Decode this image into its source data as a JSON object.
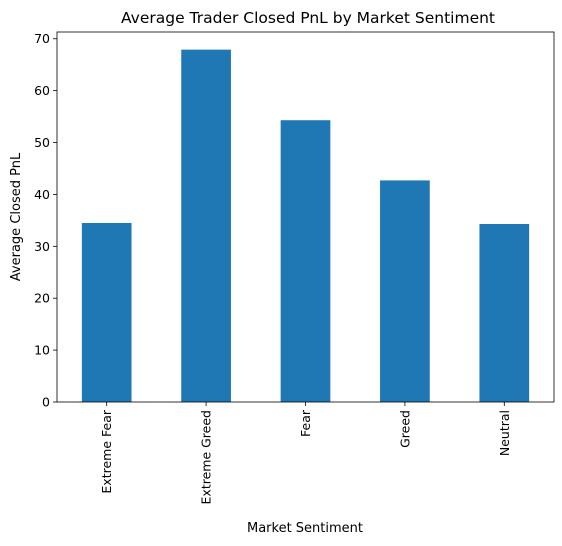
{
  "chart_data": {
    "type": "bar",
    "title": "Average Trader Closed PnL by Market Sentiment",
    "xlabel": "Market Sentiment",
    "ylabel": "Average Closed PnL",
    "categories": [
      "Extreme Fear",
      "Extreme Greed",
      "Fear",
      "Greed",
      "Neutral"
    ],
    "values": [
      34.5,
      67.9,
      54.3,
      42.7,
      34.3
    ],
    "ylim": [
      0,
      71.3
    ],
    "yticks": [
      0,
      10,
      20,
      30,
      40,
      50,
      60,
      70
    ],
    "grid": false,
    "legend": "none",
    "bar_color": "#1f77b4"
  }
}
